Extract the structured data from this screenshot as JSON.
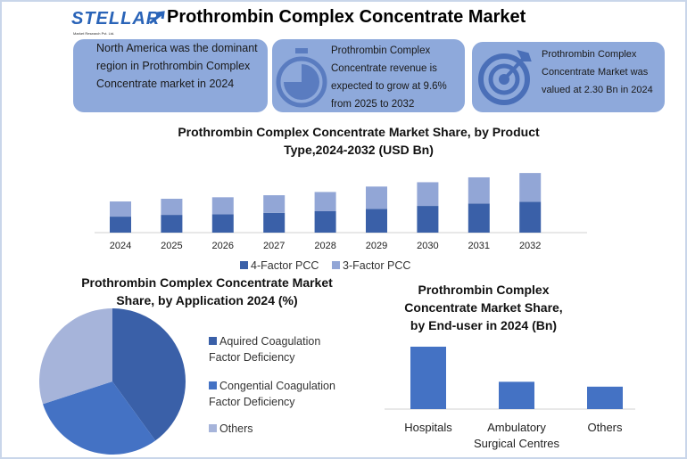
{
  "header": {
    "logo_text": "STELLAR",
    "logo_sub": "Market Research Pvt. Ltd.",
    "title": "Prothrombin Complex Concentrate Market"
  },
  "cards": [
    {
      "text": "North America was the dominant region in Prothrombin Complex Concentrate market in 2024",
      "icon": "none"
    },
    {
      "text": "Prothrombin Complex Concentrate revenue is expected to grow at 9.6% from 2025 to 2032",
      "icon": "stopwatch-icon"
    },
    {
      "text": "Prothrombin Complex Concentrate Market was valued at 2.30 Bn in 2024",
      "icon": "target-icon"
    }
  ],
  "colors": {
    "dark": "#3a60a8",
    "mid": "#4472c4",
    "light": "#92a6d6",
    "pie_light": "#a6b4da",
    "card": "#8ea9db"
  },
  "chart_data": [
    {
      "type": "bar",
      "stacked": true,
      "title": "Prothrombin Complex Concentrate Market Share, by Product Type,2024-2032 (USD Bn)",
      "categories": [
        "2024",
        "2025",
        "2026",
        "2027",
        "2028",
        "2029",
        "2030",
        "2031",
        "2032"
      ],
      "series": [
        {
          "name": "4-Factor PCC",
          "values": [
            1.18,
            1.31,
            1.36,
            1.46,
            1.58,
            1.75,
            1.97,
            2.15,
            2.28
          ]
        },
        {
          "name": "3-Factor PCC",
          "values": [
            1.12,
            1.19,
            1.25,
            1.3,
            1.42,
            1.65,
            1.75,
            1.93,
            2.12
          ]
        }
      ],
      "legend": "bottom",
      "ylim": [
        0,
        4.6
      ]
    },
    {
      "type": "pie",
      "title": "Prothrombin Complex Concentrate Market Share, by Application 2024 (%)",
      "labels": [
        "Aquired Coagulation Factor Deficiency",
        "Congential Coagulation Factor Deficiency",
        "Others"
      ],
      "values": [
        40,
        30,
        30
      ],
      "legend": "right"
    },
    {
      "type": "bar",
      "title": "Prothrombin Complex Concentrate Market Share, by End-user in 2024 (Bn)",
      "categories": [
        "Hospitals",
        "Ambulatory Surgical Centres",
        "Others"
      ],
      "values": [
        1.28,
        0.56,
        0.46
      ],
      "ylim": [
        0,
        1.3
      ]
    }
  ]
}
